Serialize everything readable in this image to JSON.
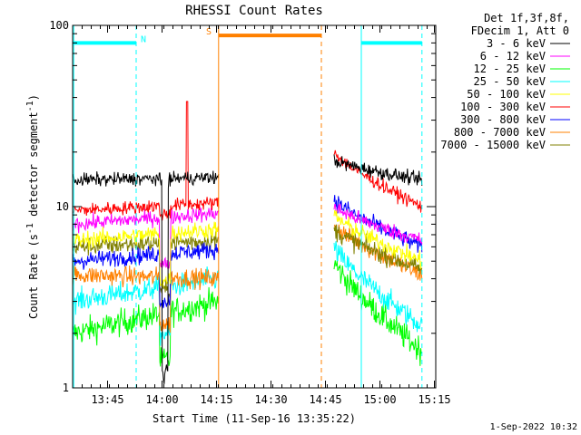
{
  "chart_data": {
    "type": "line",
    "title": "RHESSI Count Rates",
    "xlabel": "Start Time (11-Sep-16 13:35:22)",
    "ylabel": "Count Rate (s",
    "ylabel_sup": "-1",
    "ylabel_tail": " detector segment",
    "ylabel_end": ")",
    "x_unit": "minutes after 13:35:22",
    "xlim": [
      0,
      100
    ],
    "ylim": [
      1,
      100
    ],
    "y_scale": "log",
    "x_ticks": [
      {
        "value": 9.63,
        "label": "13:45"
      },
      {
        "value": 24.63,
        "label": "14:00"
      },
      {
        "value": 39.63,
        "label": "14:15"
      },
      {
        "value": 54.63,
        "label": "14:30"
      },
      {
        "value": 69.63,
        "label": "14:45"
      },
      {
        "value": 84.63,
        "label": "15:00"
      },
      {
        "value": 99.63,
        "label": "15:15"
      }
    ],
    "y_ticks": [
      {
        "value": 1,
        "label": "1"
      },
      {
        "value": 10,
        "label": "10"
      },
      {
        "value": 100,
        "label": "100"
      }
    ],
    "legend_header": [
      "Det 1f,3f,8f,",
      "FDecim 1, Att 0"
    ],
    "legend_position": "top-right",
    "timestamp": "1-Sep-2022 10:32",
    "data_segments": [
      [
        0,
        40.2
      ],
      [
        72,
        96.2
      ]
    ],
    "series": [
      {
        "name": "3 - 6 keV",
        "color": "#000000",
        "y_start": 14,
        "y_end": 14.5,
        "y_post": 18,
        "y_post_end": 14,
        "noise": 0.035
      },
      {
        "name": "6 - 12 keV",
        "color": "#ff00ff",
        "y_start": 8.0,
        "y_end": 9.2,
        "y_post": 10,
        "y_post_end": 6.5,
        "noise": 0.04
      },
      {
        "name": "12 - 25 keV",
        "color": "#00ff00",
        "y_start": 2.0,
        "y_end": 3.0,
        "y_post": 5,
        "y_post_end": 1.6,
        "noise": 0.07
      },
      {
        "name": "25 - 50 keV",
        "color": "#00ffff",
        "y_start": 3.0,
        "y_end": 4.0,
        "y_post": 6,
        "y_post_end": 2.2,
        "noise": 0.06
      },
      {
        "name": "50 - 100 keV",
        "color": "#ffff00",
        "y_start": 6.5,
        "y_end": 7.5,
        "y_post": 9,
        "y_post_end": 5,
        "noise": 0.045
      },
      {
        "name": "100 - 300 keV",
        "color": "#ff0000",
        "y_start": 9.5,
        "y_end": 10.5,
        "y_post": 20,
        "y_post_end": 10,
        "noise": 0.035
      },
      {
        "name": "300 - 800 keV",
        "color": "#0000ff",
        "y_start": 5.0,
        "y_end": 5.8,
        "y_post": 11,
        "y_post_end": 6,
        "noise": 0.045
      },
      {
        "name": "800 - 7000 keV",
        "color": "#ff8000",
        "y_start": 4.2,
        "y_end": 4.0,
        "y_post": 8,
        "y_post_end": 4.2,
        "noise": 0.05
      },
      {
        "name": "7000 - 15000 keV",
        "color": "#808000",
        "y_start": 6.0,
        "y_end": 6.5,
        "y_post": 7.5,
        "y_post_end": 4.5,
        "noise": 0.05
      }
    ],
    "annotations": [
      {
        "label": "N",
        "color": "#00ffff",
        "x_start": 0,
        "x_end": 17.5,
        "y": 80,
        "label_x": 19.5
      },
      {
        "label": "S",
        "color": "#ff8000",
        "x_start": 40.2,
        "x_end": 68.5,
        "y": 88,
        "label_x": 37.5
      },
      {
        "label": "",
        "color": "#00ffff",
        "x_start": 79.5,
        "x_end": 96.2,
        "y": 80,
        "label_x": 0
      }
    ],
    "vertical_markers": [
      {
        "x": 0.3,
        "color": "#00ffff",
        "style": "solid"
      },
      {
        "x": 17.5,
        "color": "#00ffff",
        "style": "dashed"
      },
      {
        "x": 40.2,
        "color": "#ff8000",
        "style": "solid"
      },
      {
        "x": 68.5,
        "color": "#ff8000",
        "style": "dashed"
      },
      {
        "x": 79.5,
        "color": "#00ffff",
        "style": "solid"
      },
      {
        "x": 96.2,
        "color": "#00ffff",
        "style": "dashed"
      }
    ]
  }
}
